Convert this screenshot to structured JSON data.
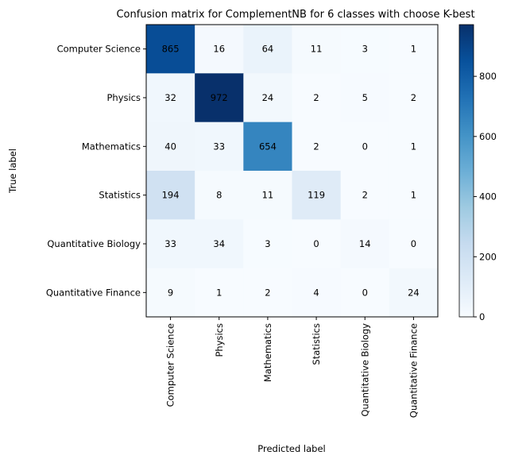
{
  "chart_data": {
    "type": "heatmap",
    "title": "Confusion matrix for ComplementNB for 6 classes with choose K-best",
    "xlabel": "Predicted label",
    "ylabel": "True label",
    "rows": [
      "Computer Science",
      "Physics",
      "Mathematics",
      "Statistics",
      "Quantitative Biology",
      "Quantitative Finance"
    ],
    "columns": [
      "Computer Science",
      "Physics",
      "Mathematics",
      "Statistics",
      "Quantitative Biology",
      "Quantitative Finance"
    ],
    "values": [
      [
        865,
        16,
        64,
        11,
        3,
        1
      ],
      [
        32,
        972,
        24,
        2,
        5,
        2
      ],
      [
        40,
        33,
        654,
        2,
        0,
        1
      ],
      [
        194,
        8,
        11,
        119,
        2,
        1
      ],
      [
        33,
        34,
        3,
        0,
        14,
        0
      ],
      [
        9,
        1,
        2,
        4,
        0,
        24
      ]
    ],
    "colormap": "Blues",
    "color_range": [
      0,
      972
    ],
    "colorbar_ticks": [
      0,
      200,
      400,
      600,
      800
    ],
    "grid": false
  }
}
